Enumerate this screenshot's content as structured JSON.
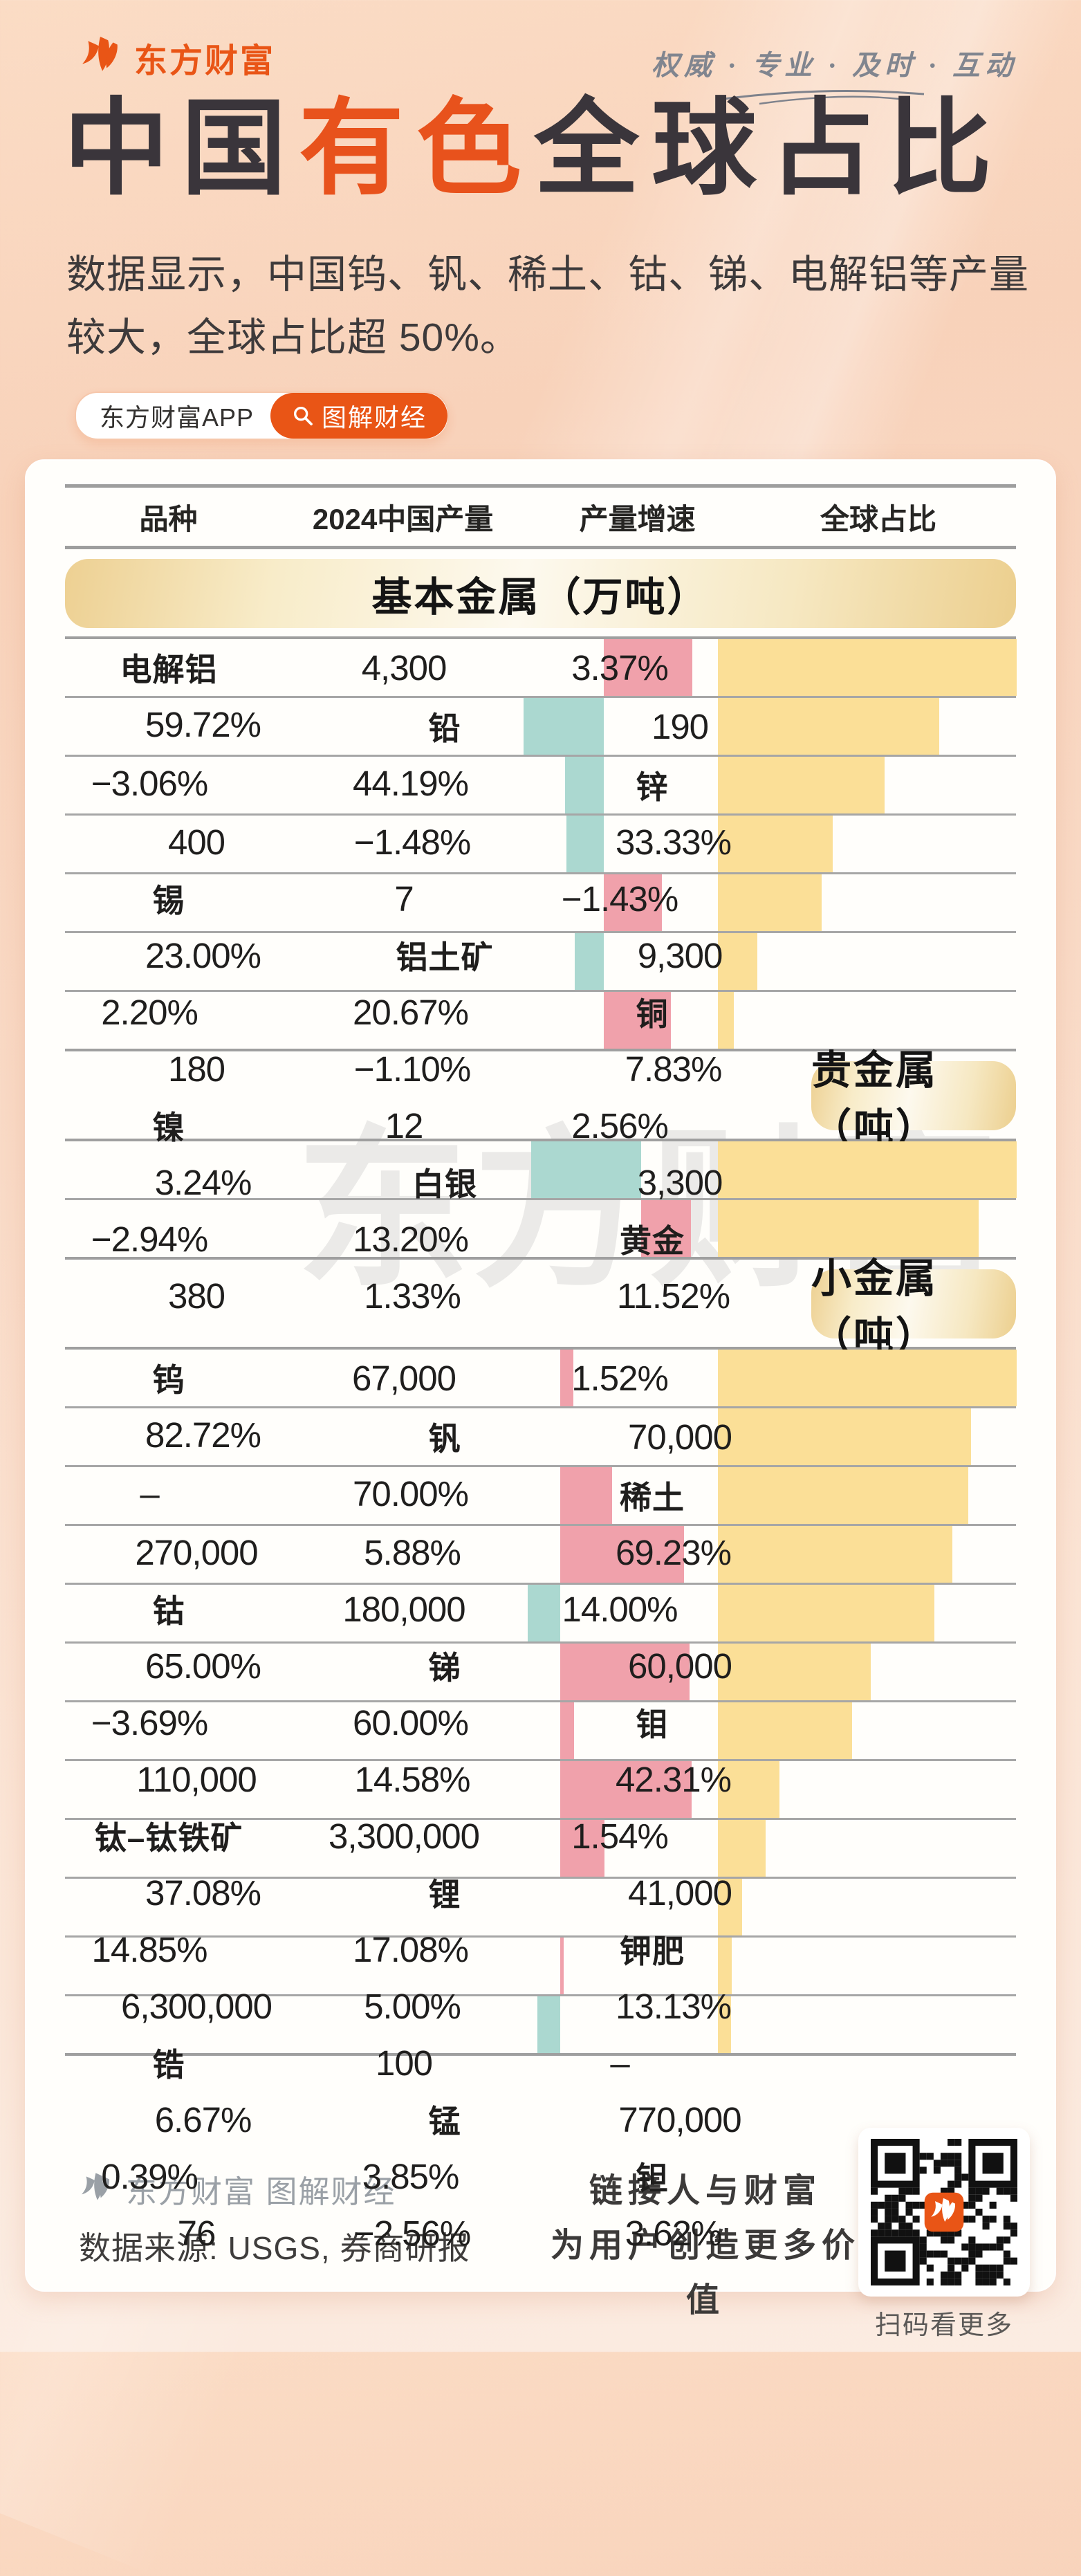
{
  "brand": {
    "logo_text": "东方财富",
    "slogan": "权威 · 专业 · 及时 · 互动"
  },
  "title": {
    "part1": "中国",
    "highlight": "有色",
    "part2": "全球占比"
  },
  "subtitle": "数据显示，中国钨、钒、稀土、钴、锑、电解铝等产量较大，全球占比超 50%。",
  "badges": {
    "app_label": "东方财富APP",
    "tag_label": "图解财经"
  },
  "watermark": "东方财富",
  "chart_data": {
    "type": "table",
    "columns": [
      "品种",
      "2024中国产量",
      "产量增速",
      "全球占比"
    ],
    "bar_legend": {
      "growth_positive_color": "#f0a1ab",
      "growth_negative_color": "#abd8d0",
      "share_color": "#fbdf97",
      "scaling": "bar widths proportional to value within each section"
    },
    "sections": [
      {
        "title": "基本金属（万吨）",
        "rows": [
          {
            "name": "电解铝",
            "production": "4,300",
            "growth_label": "3.37%",
            "growth_pct": 3.37,
            "share_label": "59.72%",
            "share_pct": 59.72
          },
          {
            "name": "铅",
            "production": "190",
            "growth_label": "−3.06%",
            "growth_pct": -3.06,
            "share_label": "44.19%",
            "share_pct": 44.19
          },
          {
            "name": "锌",
            "production": "400",
            "growth_label": "−1.48%",
            "growth_pct": -1.48,
            "share_label": "33.33%",
            "share_pct": 33.33
          },
          {
            "name": "锡",
            "production": "7",
            "growth_label": "−1.43%",
            "growth_pct": -1.43,
            "share_label": "23.00%",
            "share_pct": 23.0
          },
          {
            "name": "铝土矿",
            "production": "9,300",
            "growth_label": "2.20%",
            "growth_pct": 2.2,
            "share_label": "20.67%",
            "share_pct": 20.67
          },
          {
            "name": "铜",
            "production": "180",
            "growth_label": "−1.10%",
            "growth_pct": -1.1,
            "share_label": "7.83%",
            "share_pct": 7.83
          },
          {
            "name": "镍",
            "production": "12",
            "growth_label": "2.56%",
            "growth_pct": 2.56,
            "share_label": "3.24%",
            "share_pct": 3.24
          }
        ]
      },
      {
        "title": "贵金属（吨）",
        "rows": [
          {
            "name": "白银",
            "production": "3,300",
            "growth_label": "−2.94%",
            "growth_pct": -2.94,
            "share_label": "13.20%",
            "share_pct": 13.2
          },
          {
            "name": "黄金",
            "production": "380",
            "growth_label": "1.33%",
            "growth_pct": 1.33,
            "share_label": "11.52%",
            "share_pct": 11.52
          }
        ]
      },
      {
        "title": "小金属（吨）",
        "rows": [
          {
            "name": "钨",
            "production": "67,000",
            "growth_label": "1.52%",
            "growth_pct": 1.52,
            "share_label": "82.72%",
            "share_pct": 82.72
          },
          {
            "name": "钒",
            "production": "70,000",
            "growth_label": "–",
            "growth_pct": null,
            "share_label": "70.00%",
            "share_pct": 70.0
          },
          {
            "name": "稀土",
            "production": "270,000",
            "growth_label": "5.88%",
            "growth_pct": 5.88,
            "share_label": "69.23%",
            "share_pct": 69.23
          },
          {
            "name": "钴",
            "production": "180,000",
            "growth_label": "14.00%",
            "growth_pct": 14.0,
            "share_label": "65.00%",
            "share_pct": 65.0
          },
          {
            "name": "锑",
            "production": "60,000",
            "growth_label": "−3.69%",
            "growth_pct": -3.69,
            "share_label": "60.00%",
            "share_pct": 60.0
          },
          {
            "name": "钼",
            "production": "110,000",
            "growth_label": "14.58%",
            "growth_pct": 14.58,
            "share_label": "42.31%",
            "share_pct": 42.31
          },
          {
            "name": "钛–钛铁矿",
            "production": "3,300,000",
            "growth_label": "1.54%",
            "growth_pct": 1.54,
            "share_label": "37.08%",
            "share_pct": 37.08
          },
          {
            "name": "锂",
            "production": "41,000",
            "growth_label": "14.85%",
            "growth_pct": 14.85,
            "share_label": "17.08%",
            "share_pct": 17.08
          },
          {
            "name": "钾肥",
            "production": "6,300,000",
            "growth_label": "5.00%",
            "growth_pct": 5.0,
            "share_label": "13.13%",
            "share_pct": 13.13
          },
          {
            "name": "锆",
            "production": "100",
            "growth_label": "–",
            "growth_pct": null,
            "share_label": "6.67%",
            "share_pct": 6.67
          },
          {
            "name": "锰",
            "production": "770,000",
            "growth_label": "0.39%",
            "growth_pct": 0.39,
            "share_label": "3.85%",
            "share_pct": 3.85
          },
          {
            "name": "钽",
            "production": "76",
            "growth_label": "−2.56%",
            "growth_pct": -2.56,
            "share_label": "3.62%",
            "share_pct": 3.62
          }
        ]
      }
    ]
  },
  "footer": {
    "brand_line": "东方财富 图解财经",
    "source_line": "数据来源: USGS, 券商研报",
    "slogan_line1": "链接人与财富",
    "slogan_line2": "为用户创造更多价值",
    "qr_caption": "扫码看更多"
  },
  "colors": {
    "accent": "#e95516",
    "title_dark": "#3a353b",
    "growth_positive_bar": "#f0a1ab",
    "growth_negative_bar": "#abd8d0",
    "share_bar": "#fbdf97",
    "banner_gold": "#eccf8e"
  }
}
